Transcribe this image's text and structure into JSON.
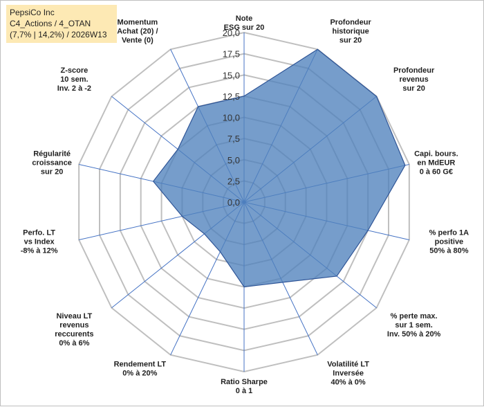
{
  "header": {
    "line1": "PepsiCo Inc",
    "line2": "C4_Actions / 4_OTAN",
    "line3": "(7,7% | 14,2%) / 2026W13"
  },
  "colors": {
    "fill": "#4f81bd",
    "stroke": "#2f5597",
    "grid": "#bfbfbf",
    "spoke": "#4472c4",
    "header_bg": "#fde9b4"
  },
  "chart_data": {
    "type": "radar",
    "ylim": [
      0,
      20
    ],
    "tick_labels": [
      "0,0",
      "2,5",
      "5,0",
      "7,5",
      "10,0",
      "12,5",
      "15,0",
      "17,5",
      "20,0"
    ],
    "axes": [
      {
        "label": [
          "Note",
          "ESG sur 20"
        ],
        "value": 12.5
      },
      {
        "label": [
          "Profondeur",
          "historique",
          "sur 20"
        ],
        "value": 20.0
      },
      {
        "label": [
          "Profondeur",
          "revenus",
          "sur 20"
        ],
        "value": 20.0
      },
      {
        "label": [
          "Capi. bours.",
          "en MdEUR",
          "0 à 60 G€"
        ],
        "value": 19.5
      },
      {
        "label": [
          "% perfo 1A",
          "positive",
          "50% à 80%"
        ],
        "value": 15.0
      },
      {
        "label": [
          "% perte max.",
          "sur 1 sem.",
          "Inv. 50% à 20%"
        ],
        "value": 14.0
      },
      {
        "label": [
          "Volatilité LT",
          "Inversée",
          "40% à 0%"
        ],
        "value": 10.5
      },
      {
        "label": [
          "Ratio Sharpe",
          "0 à 1"
        ],
        "value": 10.0
      },
      {
        "label": [
          "Rendement LT",
          "0% à 20%"
        ],
        "value": 6.5
      },
      {
        "label": [
          "Niveau LT",
          "revenus",
          "reccurents",
          "0% à 6%"
        ],
        "value": 6.0
      },
      {
        "label": [
          "Perfo. LT",
          "vs Index",
          "-8% à 12%"
        ],
        "value": 7.5
      },
      {
        "label": [
          "Régularité",
          "croissance",
          "sur 20"
        ],
        "value": 11.0
      },
      {
        "label": [
          "Z-score",
          "10 sem.",
          "Inv. 2 à -2"
        ],
        "value": 10.0
      },
      {
        "label": [
          "Momentum",
          "Achat (20) /",
          "Vente (0)"
        ],
        "value": 12.5
      }
    ]
  }
}
